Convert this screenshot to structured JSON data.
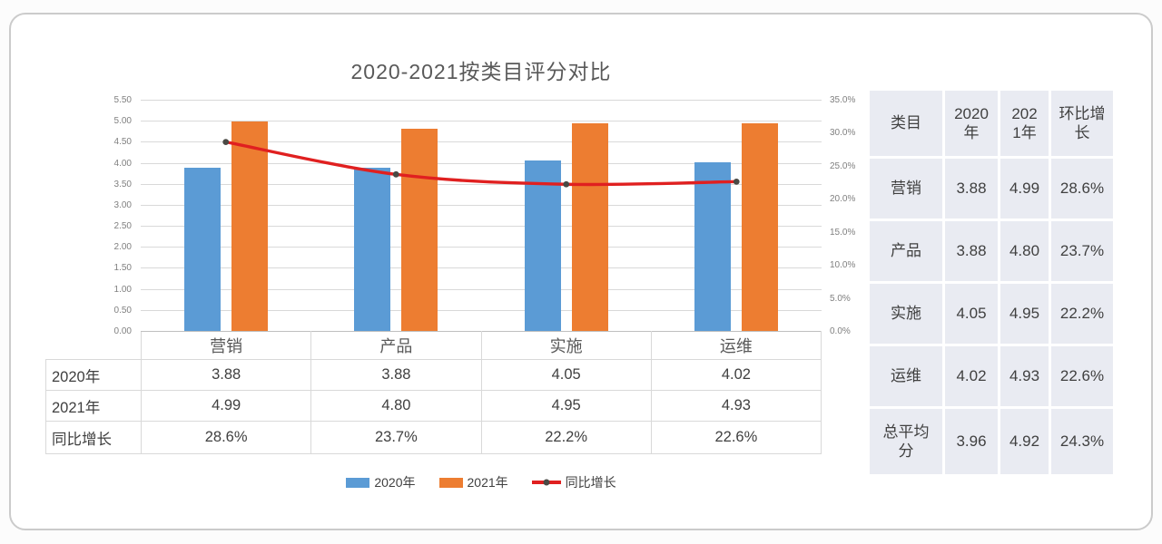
{
  "chart_data": {
    "type": "bar",
    "title": "2020-2021按类目评分对比",
    "categories": [
      "营销",
      "产品",
      "实施",
      "运维"
    ],
    "series": [
      {
        "name": "2020年",
        "type": "bar",
        "axis": "left",
        "color": "#5B9BD5",
        "values": [
          3.88,
          3.88,
          4.05,
          4.02
        ]
      },
      {
        "name": "2021年",
        "type": "bar",
        "axis": "left",
        "color": "#ED7D31",
        "values": [
          4.99,
          4.8,
          4.95,
          4.93
        ]
      },
      {
        "name": "同比增长",
        "type": "line",
        "axis": "right",
        "color": "#E02020",
        "marker_color": "#4A4A45",
        "unit": "%",
        "values": [
          28.6,
          23.7,
          22.2,
          22.6
        ]
      }
    ],
    "left_axis": {
      "min": 0,
      "max": 5.5,
      "step": 0.5,
      "ticks": [
        "0.00",
        "0.50",
        "1.00",
        "1.50",
        "2.00",
        "2.50",
        "3.00",
        "3.50",
        "4.00",
        "4.50",
        "5.00",
        "5.50"
      ]
    },
    "right_axis": {
      "min": 0,
      "max": 35,
      "step": 5,
      "ticks": [
        "0.0%",
        "5.0%",
        "10.0%",
        "15.0%",
        "20.0%",
        "25.0%",
        "30.0%",
        "35.0%"
      ]
    },
    "grid": true,
    "legend_position": "bottom"
  },
  "legend": {
    "items": [
      {
        "label": "2020年",
        "color": "#5B9BD5",
        "shape": "rect"
      },
      {
        "label": "2021年",
        "color": "#ED7D31",
        "shape": "rect"
      },
      {
        "label": "同比增长",
        "color": "#E02020",
        "shape": "line"
      }
    ]
  },
  "bottom_table": {
    "columns": [
      "营销",
      "产品",
      "实施",
      "运维"
    ],
    "row_labels": [
      "2020年",
      "2021年",
      "同比增长"
    ],
    "rows": [
      [
        "3.88",
        "3.88",
        "4.05",
        "4.02"
      ],
      [
        "4.99",
        "4.80",
        "4.95",
        "4.93"
      ],
      [
        "28.6%",
        "23.7%",
        "22.2%",
        "22.6%"
      ]
    ]
  },
  "side_table": {
    "headers": [
      "类目",
      "2020年",
      "2021年",
      "环比增长"
    ],
    "rows": [
      [
        "营销",
        "3.88",
        "4.99",
        "28.6%"
      ],
      [
        "产品",
        "3.88",
        "4.80",
        "23.7%"
      ],
      [
        "实施",
        "4.05",
        "4.95",
        "22.2%"
      ],
      [
        "运维",
        "4.02",
        "4.93",
        "22.6%"
      ],
      [
        "总平均分",
        "3.96",
        "4.92",
        "24.3%"
      ]
    ],
    "cell_bg": "#E9EBF2"
  },
  "colors": {
    "grid": "#D9D9D9",
    "axis_line": "#BFBFBF",
    "axis_label": "#7F7F7F",
    "title": "#595959",
    "table_border": "#D9D9D9",
    "text": "#404040",
    "card_border": "#CBCBCB",
    "marker": "#4A4A45",
    "side_cell_bg": "#E9EBF2"
  }
}
